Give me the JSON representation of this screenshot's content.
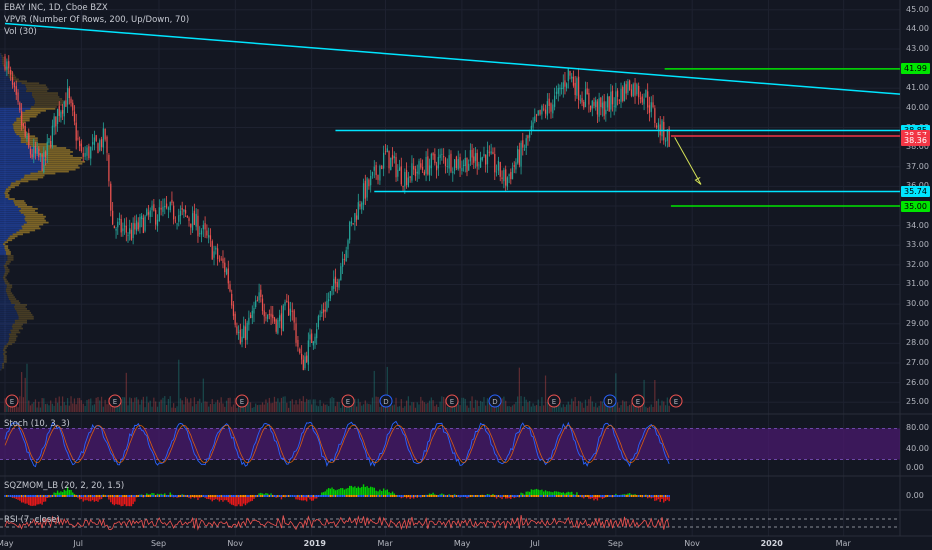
{
  "header": {
    "symbol_line": "EBAY INC, 1D, Cboe BZX",
    "vpvr_line": "VPVR (Number Of Rows, 200, Up/Down, 70)",
    "vol_line": "Vol (30)"
  },
  "panes": {
    "stoch_label": "Stoch (10, 3, 3)",
    "sqzmom_label": "SQZMOM_LB (20, 2, 20, 1.5)",
    "rsi_label": "RSI (7, close)"
  },
  "price_axis": {
    "ticks": [
      "45.00",
      "44.00",
      "43.00",
      "42.00",
      "41.00",
      "40.00",
      "39.00",
      "38.00",
      "37.00",
      "36.00",
      "35.00",
      "34.00",
      "33.00",
      "32.00",
      "31.00",
      "30.00",
      "29.00",
      "28.00",
      "27.00",
      "26.00",
      "25.00"
    ],
    "tags": [
      {
        "value": "41.99",
        "bg": "#00e600",
        "fg": "#000000",
        "price": 41.99
      },
      {
        "value": "38.85",
        "bg": "#00e5ff",
        "fg": "#000000",
        "price": 38.85
      },
      {
        "value": "38.57",
        "bg": "#f23645",
        "fg": "#ffffff",
        "price": 38.57
      },
      {
        "value": "38.36",
        "bg": "#f23645",
        "fg": "#ffffff",
        "price": 38.36
      },
      {
        "value": "35.74",
        "bg": "#00e5ff",
        "fg": "#000000",
        "price": 35.74
      },
      {
        "value": "35.00",
        "bg": "#00e600",
        "fg": "#000000",
        "price": 35.0
      }
    ]
  },
  "stoch_axis": [
    "80.00",
    "40.00",
    "0.00"
  ],
  "sqz_axis": [
    "0.00"
  ],
  "time_axis": [
    "May",
    "Jul",
    "Sep",
    "Nov",
    "2019",
    "Mar",
    "May",
    "Jul",
    "Sep",
    "Nov",
    "2020",
    "Mar"
  ],
  "event_markers": [
    "E",
    "E",
    "E",
    "E",
    "D",
    "E",
    "D",
    "E",
    "D",
    "E",
    "E"
  ],
  "colors": {
    "background": "#131722",
    "up": "#26a69a",
    "down": "#ef5350",
    "trendline": "#00e5ff",
    "target": "#00e600",
    "current": "#f23645",
    "arrow": "#d4e157",
    "stoch_band": "#4a1a6e"
  },
  "chart_data": {
    "type": "candlestick",
    "symbol": "EBAY INC",
    "interval": "1D",
    "exchange": "Cboe BZX",
    "ylim": [
      24.5,
      45.5
    ],
    "y_scale": "linear",
    "x_start": "2018-05",
    "x_end": "2020-04",
    "price_path": [
      [
        "2018-05-01",
        42.5
      ],
      [
        "2018-05-10",
        40.2
      ],
      [
        "2018-05-20",
        37.8
      ],
      [
        "2018-06-01",
        37.2
      ],
      [
        "2018-06-12",
        39.8
      ],
      [
        "2018-06-20",
        40.6
      ],
      [
        "2018-07-01",
        37.5
      ],
      [
        "2018-07-10",
        37.9
      ],
      [
        "2018-07-20",
        38.5
      ],
      [
        "2018-07-26",
        34.0
      ],
      [
        "2018-08-10",
        33.6
      ],
      [
        "2018-08-25",
        34.5
      ],
      [
        "2018-09-10",
        34.7
      ],
      [
        "2018-09-25",
        34.4
      ],
      [
        "2018-10-05",
        33.8
      ],
      [
        "2018-10-15",
        32.6
      ],
      [
        "2018-10-25",
        31.7
      ],
      [
        "2018-11-05",
        28.0
      ],
      [
        "2018-11-20",
        30.2
      ],
      [
        "2018-12-05",
        29.0
      ],
      [
        "2018-12-15",
        30.0
      ],
      [
        "2018-12-24",
        26.8
      ],
      [
        "2019-01-05",
        29.0
      ],
      [
        "2019-01-20",
        31.0
      ],
      [
        "2019-01-30",
        33.5
      ],
      [
        "2019-02-10",
        35.5
      ],
      [
        "2019-02-20",
        36.5
      ],
      [
        "2019-03-01",
        37.6
      ],
      [
        "2019-03-15",
        36.5
      ],
      [
        "2019-04-01",
        37.0
      ],
      [
        "2019-04-15",
        37.4
      ],
      [
        "2019-05-01",
        37.2
      ],
      [
        "2019-05-20",
        37.6
      ],
      [
        "2019-06-05",
        36.3
      ],
      [
        "2019-06-20",
        38.0
      ],
      [
        "2019-07-01",
        39.5
      ],
      [
        "2019-07-17",
        40.6
      ],
      [
        "2019-07-25",
        41.8
      ],
      [
        "2019-08-05",
        40.6
      ],
      [
        "2019-08-20",
        39.9
      ],
      [
        "2019-09-01",
        40.5
      ],
      [
        "2019-09-12",
        41.2
      ],
      [
        "2019-09-25",
        40.6
      ],
      [
        "2019-10-05",
        39.0
      ],
      [
        "2019-10-15",
        38.4
      ]
    ],
    "lines": [
      {
        "type": "trendline",
        "from": [
          "2018-05-01",
          44.3
        ],
        "to": [
          "2020-04-15",
          40.7
        ],
        "color": "#00e5ff"
      },
      {
        "type": "resistance",
        "from": [
          "2019-01-20",
          38.85
        ],
        "to": [
          "2020-04-15",
          38.85
        ],
        "color": "#00e5ff",
        "value": 38.85
      },
      {
        "type": "support",
        "from": [
          "2019-02-20",
          35.74
        ],
        "to": [
          "2020-04-15",
          35.74
        ],
        "color": "#00e5ff",
        "value": 35.74
      },
      {
        "type": "target",
        "from": [
          "2019-10-10",
          41.99
        ],
        "to": [
          "2020-04-15",
          41.99
        ],
        "color": "#00e600",
        "value": 41.99
      },
      {
        "type": "target",
        "from": [
          "2019-10-15",
          35.0
        ],
        "to": [
          "2020-04-15",
          35.0
        ],
        "color": "#00e600",
        "value": 35.0
      },
      {
        "type": "current",
        "from": [
          "2019-10-15",
          38.57
        ],
        "to": [
          "2020-04-15",
          38.57
        ],
        "color": "#f23645",
        "value": 38.57
      }
    ],
    "projection_arrow": {
      "from": [
        "2019-10-18",
        38.5
      ],
      "to": [
        "2019-11-08",
        36.1
      ]
    },
    "stoch": {
      "upper": 80,
      "lower": 20,
      "ylim": [
        0,
        100
      ]
    },
    "rsi": {
      "ylim": [
        0,
        100
      ]
    }
  }
}
